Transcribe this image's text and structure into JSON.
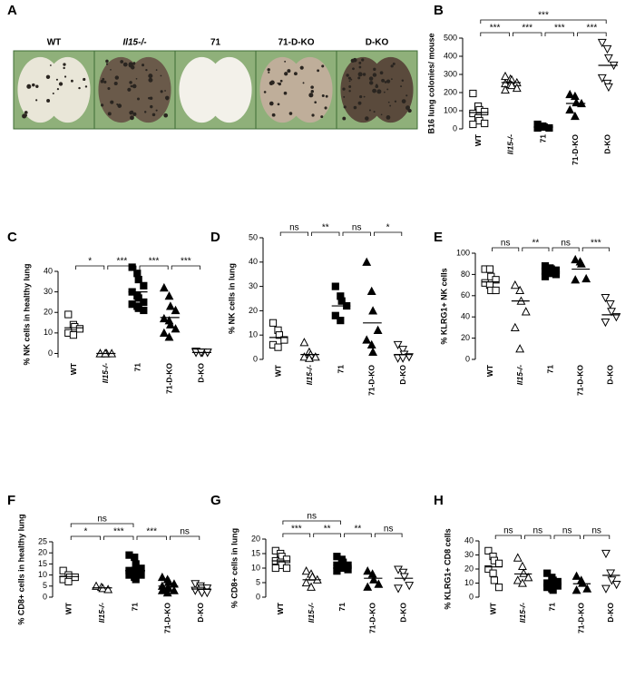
{
  "panel_a": {
    "letter": "A",
    "labels": [
      "WT",
      "Il15-/-",
      "71",
      "71-D-KO",
      "D-KO"
    ]
  },
  "chart_data": [
    {
      "type": "dot",
      "letter": "B",
      "y_label": "B16 lung colonies/ mouse",
      "categories": [
        "WT",
        "Il15-/-",
        "71",
        "71-D-KO",
        "D-KO"
      ],
      "markers": [
        "square-open",
        "triangle-open",
        "square-filled",
        "triangle-filled",
        "triangle-down-open"
      ],
      "ylim": [
        0,
        500
      ],
      "yticks": [
        0,
        100,
        200,
        300,
        400,
        500
      ],
      "values": [
        [
          195,
          125,
          105,
          95,
          85,
          60,
          45,
          30,
          25
        ],
        [
          290,
          275,
          270,
          255,
          250,
          245,
          240,
          225,
          215
        ],
        [
          25,
          15,
          10,
          5,
          5
        ],
        [
          190,
          180,
          145,
          140,
          105,
          70
        ],
        [
          475,
          440,
          390,
          350,
          280,
          250,
          230
        ]
      ],
      "means": [
        90,
        255,
        10,
        140,
        350
      ],
      "comparisons": [
        {
          "from": 0,
          "to": 4,
          "label": "***"
        },
        {
          "from": 0,
          "to": 1,
          "label": "***"
        },
        {
          "from": 1,
          "to": 2,
          "label": "***"
        },
        {
          "from": 2,
          "to": 3,
          "label": "***"
        },
        {
          "from": 3,
          "to": 4,
          "label": "***"
        }
      ]
    },
    {
      "type": "dot",
      "letter": "C",
      "y_label": "% NK cells in healthy lung",
      "categories": [
        "WT",
        "Il15-/-",
        "71",
        "71-D-KO",
        "D-KO"
      ],
      "markers": [
        "square-open",
        "triangle-open",
        "square-filled",
        "triangle-filled",
        "triangle-down-open"
      ],
      "ylim": [
        -2,
        40
      ],
      "yticks": [
        0,
        10,
        20,
        30,
        40
      ],
      "values": [
        [
          19,
          14,
          13,
          12,
          10,
          9
        ],
        [
          0,
          0,
          0,
          0,
          0,
          0
        ],
        [
          42,
          39,
          36,
          33,
          30,
          28,
          27,
          25,
          24,
          23,
          22,
          21
        ],
        [
          32,
          28,
          23,
          21,
          17,
          16,
          14,
          12,
          10,
          8
        ],
        [
          1,
          0.5,
          0.5,
          0.5,
          0.5,
          0.5,
          0.5,
          0.5,
          0.5,
          0.5
        ]
      ],
      "means": [
        12.5,
        0,
        30,
        17.5,
        0.5
      ],
      "comparisons": [
        {
          "from": 0,
          "to": 1,
          "label": "*"
        },
        {
          "from": 1,
          "to": 2,
          "label": "***"
        },
        {
          "from": 2,
          "to": 3,
          "label": "***"
        },
        {
          "from": 3,
          "to": 4,
          "label": "***"
        }
      ]
    },
    {
      "type": "dot",
      "letter": "D",
      "y_label": "% NK cells in lung",
      "categories": [
        "WT",
        "Il15-/-",
        "71",
        "71-D-KO",
        "D-KO"
      ],
      "markers": [
        "square-open",
        "triangle-open",
        "square-filled",
        "triangle-filled",
        "triangle-down-open"
      ],
      "ylim": [
        0,
        50
      ],
      "yticks": [
        0,
        10,
        20,
        30,
        40,
        50
      ],
      "values": [
        [
          15,
          12,
          10,
          8,
          6,
          5
        ],
        [
          7,
          3,
          2,
          1,
          1,
          0.5
        ],
        [
          30,
          26,
          24,
          22,
          18,
          16
        ],
        [
          40,
          28,
          20,
          12,
          8,
          6,
          3
        ],
        [
          6,
          4,
          2,
          1,
          0.5,
          0.5
        ]
      ],
      "means": [
        9,
        2,
        22,
        15,
        2
      ],
      "comparisons": [
        {
          "from": 0,
          "to": 1,
          "label": "ns"
        },
        {
          "from": 1,
          "to": 2,
          "label": "**"
        },
        {
          "from": 2,
          "to": 3,
          "label": "ns"
        },
        {
          "from": 3,
          "to": 4,
          "label": "*"
        }
      ]
    },
    {
      "type": "dot",
      "letter": "E",
      "y_label": "% KLRG1+ NK cells",
      "categories": [
        "WT",
        "Il15-/-",
        "71",
        "71-D-KO",
        "D-KO"
      ],
      "markers": [
        "square-open",
        "triangle-open",
        "square-filled",
        "triangle-filled",
        "triangle-down-open"
      ],
      "ylim": [
        0,
        100
      ],
      "yticks": [
        0,
        20,
        40,
        60,
        80,
        100
      ],
      "values": [
        [
          85,
          85,
          78,
          75,
          72,
          70,
          65,
          65
        ],
        [
          70,
          65,
          55,
          45,
          30,
          10
        ],
        [
          88,
          86,
          85,
          84,
          83,
          82,
          81,
          80,
          78
        ],
        [
          94,
          92,
          90,
          76,
          75
        ],
        [
          58,
          52,
          45,
          40,
          35
        ]
      ],
      "means": [
        73,
        55,
        83,
        85,
        42
      ],
      "comparisons": [
        {
          "from": 0,
          "to": 1,
          "label": "ns"
        },
        {
          "from": 1,
          "to": 2,
          "label": "**"
        },
        {
          "from": 2,
          "to": 3,
          "label": "ns"
        },
        {
          "from": 3,
          "to": 4,
          "label": "***"
        }
      ]
    },
    {
      "type": "dot",
      "letter": "F",
      "y_label": "% CD8+ cells in healthy lung",
      "categories": [
        "WT",
        "Il15-/-",
        "71",
        "71-D-KO",
        "D-KO"
      ],
      "markers": [
        "square-open",
        "triangle-open",
        "square-filled",
        "triangle-filled",
        "triangle-down-open"
      ],
      "ylim": [
        0,
        25
      ],
      "yticks": [
        0,
        5,
        10,
        15,
        20,
        25
      ],
      "values": [
        [
          12,
          10,
          9,
          9,
          8,
          7
        ],
        [
          5,
          4.5,
          4,
          3.5
        ],
        [
          19,
          18,
          15,
          13,
          12,
          12,
          11,
          10,
          10,
          9,
          8
        ],
        [
          9,
          8,
          7,
          6,
          5,
          4,
          4,
          3,
          3,
          2
        ],
        [
          6,
          5,
          4,
          4,
          3,
          3,
          2,
          2
        ]
      ],
      "means": [
        9.3,
        4.2,
        12,
        5,
        3.7
      ],
      "comparisons": [
        {
          "from": 0,
          "to": 2,
          "label": "ns"
        },
        {
          "from": 0,
          "to": 1,
          "label": "*"
        },
        {
          "from": 1,
          "to": 2,
          "label": "***"
        },
        {
          "from": 2,
          "to": 3,
          "label": "***"
        },
        {
          "from": 3,
          "to": 4,
          "label": "ns"
        }
      ]
    },
    {
      "type": "dot",
      "letter": "G",
      "y_label": "% CD8+ cells in lung",
      "categories": [
        "WT",
        "Il15-/-",
        "71",
        "71-D-KO",
        "D-KO"
      ],
      "markers": [
        "square-open",
        "triangle-open",
        "square-filled",
        "triangle-filled",
        "triangle-down-open"
      ],
      "ylim": [
        0,
        20
      ],
      "yticks": [
        0,
        5,
        10,
        15,
        20
      ],
      "values": [
        [
          16,
          15,
          14,
          13,
          12.5,
          12,
          11,
          10,
          10
        ],
        [
          9,
          8,
          7,
          6,
          5,
          3.5
        ],
        [
          14,
          13,
          12,
          11,
          11,
          10.5,
          10,
          9.5,
          9
        ],
        [
          9,
          8,
          6,
          4.5,
          3.5
        ],
        [
          9.5,
          8.5,
          7,
          4,
          3
        ]
      ],
      "means": [
        12.5,
        6,
        11,
        6.5,
        6.5
      ],
      "comparisons": [
        {
          "from": 0,
          "to": 2,
          "label": "ns"
        },
        {
          "from": 0,
          "to": 1,
          "label": "***"
        },
        {
          "from": 1,
          "to": 2,
          "label": "**"
        },
        {
          "from": 2,
          "to": 3,
          "label": "**"
        },
        {
          "from": 3,
          "to": 4,
          "label": "ns"
        }
      ]
    },
    {
      "type": "dot",
      "letter": "H",
      "y_label": "% KLRG1+ CD8 cells",
      "categories": [
        "WT",
        "Il15-/-",
        "71",
        "71-D-KO",
        "D-KO"
      ],
      "markers": [
        "square-open",
        "triangle-open",
        "square-filled",
        "triangle-filled",
        "triangle-down-open"
      ],
      "ylim": [
        0,
        40
      ],
      "yticks": [
        0,
        10,
        20,
        30,
        40
      ],
      "values": [
        [
          33,
          29,
          26,
          24,
          20,
          17,
          12,
          7
        ],
        [
          28,
          22,
          17,
          14,
          12,
          10
        ],
        [
          17,
          14,
          12,
          11,
          10,
          9,
          9,
          8,
          7,
          6,
          5
        ],
        [
          15,
          12,
          10,
          6,
          5
        ],
        [
          31,
          17,
          12,
          9,
          6
        ]
      ],
      "means": [
        21.5,
        16.5,
        9.5,
        9.5,
        15.5
      ],
      "comparisons": [
        {
          "from": 0,
          "to": 1,
          "label": "ns"
        },
        {
          "from": 1,
          "to": 2,
          "label": "ns"
        },
        {
          "from": 2,
          "to": 3,
          "label": "ns"
        },
        {
          "from": 3,
          "to": 4,
          "label": "ns"
        }
      ]
    }
  ]
}
